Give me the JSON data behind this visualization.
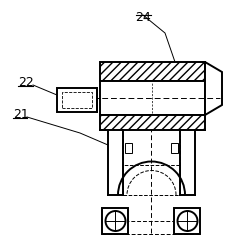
{
  "bg_color": "#ffffff",
  "line_color": "#000000",
  "label_24": "24",
  "label_22": "22",
  "label_21": "21",
  "fig_width": 2.3,
  "fig_height": 2.43,
  "dpi": 100
}
